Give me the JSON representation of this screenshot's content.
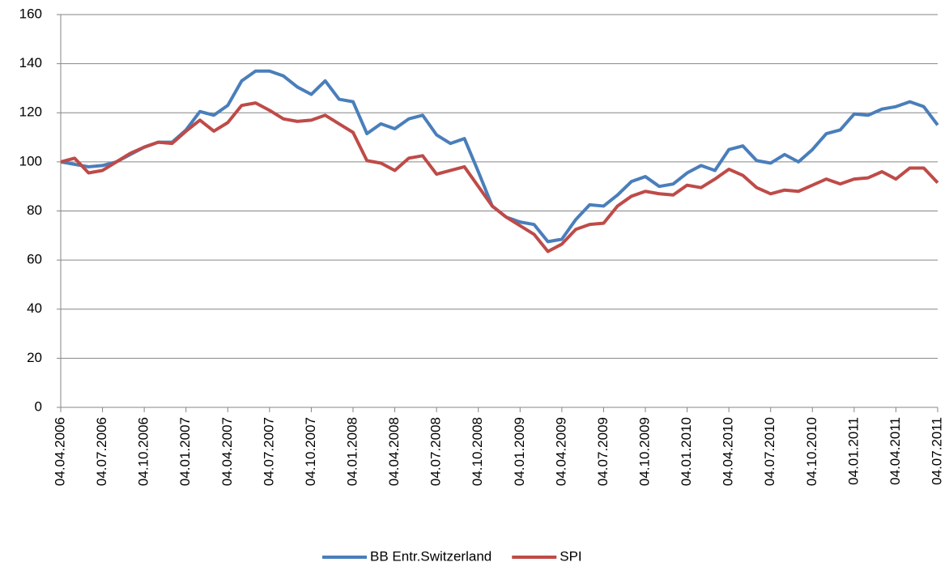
{
  "chart_data": {
    "type": "line",
    "categories": [
      "04.04.2006",
      null,
      null,
      "04.07.2006",
      null,
      null,
      "04.10.2006",
      null,
      null,
      "04.01.2007",
      null,
      null,
      "04.04.2007",
      null,
      null,
      "04.07.2007",
      null,
      null,
      "04.10.2007",
      null,
      null,
      "04.01.2008",
      null,
      null,
      "04.04.2008",
      null,
      null,
      "04.07.2008",
      null,
      null,
      "04.10.2008",
      null,
      null,
      "04.01.2009",
      null,
      null,
      "04.04.2009",
      null,
      null,
      "04.07.2009",
      null,
      null,
      "04.10.2009",
      null,
      null,
      "04.01.2010",
      null,
      null,
      "04.04.2010",
      null,
      null,
      "04.07.2010",
      null,
      null,
      "04.10.2010",
      null,
      null,
      "04.01.2011",
      null,
      null,
      "04.04.2011",
      null,
      null,
      "04.07.2011"
    ],
    "series": [
      {
        "name": "BB Entr.Switzerland",
        "color": "#4a7ebb",
        "values": [
          100,
          99,
          98,
          98.5,
          100,
          103,
          106,
          108,
          108,
          113,
          120.5,
          119,
          123,
          133,
          137,
          137,
          135,
          130.5,
          127.5,
          133,
          125.5,
          124.5,
          111.5,
          115.5,
          113.5,
          117.5,
          119,
          111,
          107.5,
          109.5,
          96,
          82,
          77.5,
          75.5,
          74.5,
          67.5,
          68.5,
          76.5,
          82.5,
          82,
          86.5,
          92,
          94,
          90,
          91,
          95.5,
          98.5,
          96.5,
          105,
          106.5,
          100.5,
          99.5,
          103,
          100,
          105,
          111.5,
          113,
          119.5,
          119,
          121.5,
          122.5,
          124.5,
          122.5,
          115
        ]
      },
      {
        "name": "SPI",
        "color": "#be4b48",
        "values": [
          100,
          101.5,
          95.5,
          96.5,
          100,
          103.5,
          106,
          108,
          107.5,
          112.5,
          117,
          112.5,
          116,
          123,
          124,
          121,
          117.5,
          116.5,
          117,
          119,
          115.5,
          112,
          100.5,
          99.5,
          96.5,
          101.5,
          102.5,
          95,
          96.5,
          98,
          90,
          82,
          77.5,
          74,
          70.5,
          63.5,
          66.5,
          72.5,
          74.5,
          75,
          82,
          86,
          88,
          87,
          86.5,
          90.5,
          89.5,
          93,
          97,
          94.5,
          89.5,
          87,
          88.5,
          88,
          90.5,
          93,
          91,
          93,
          93.5,
          96,
          93,
          97.5,
          97.5,
          91.5
        ]
      }
    ],
    "ylim": [
      0,
      160
    ],
    "yticks": [
      0,
      20,
      40,
      60,
      80,
      100,
      120,
      140,
      160
    ],
    "grid": true,
    "legend": "bottom"
  }
}
